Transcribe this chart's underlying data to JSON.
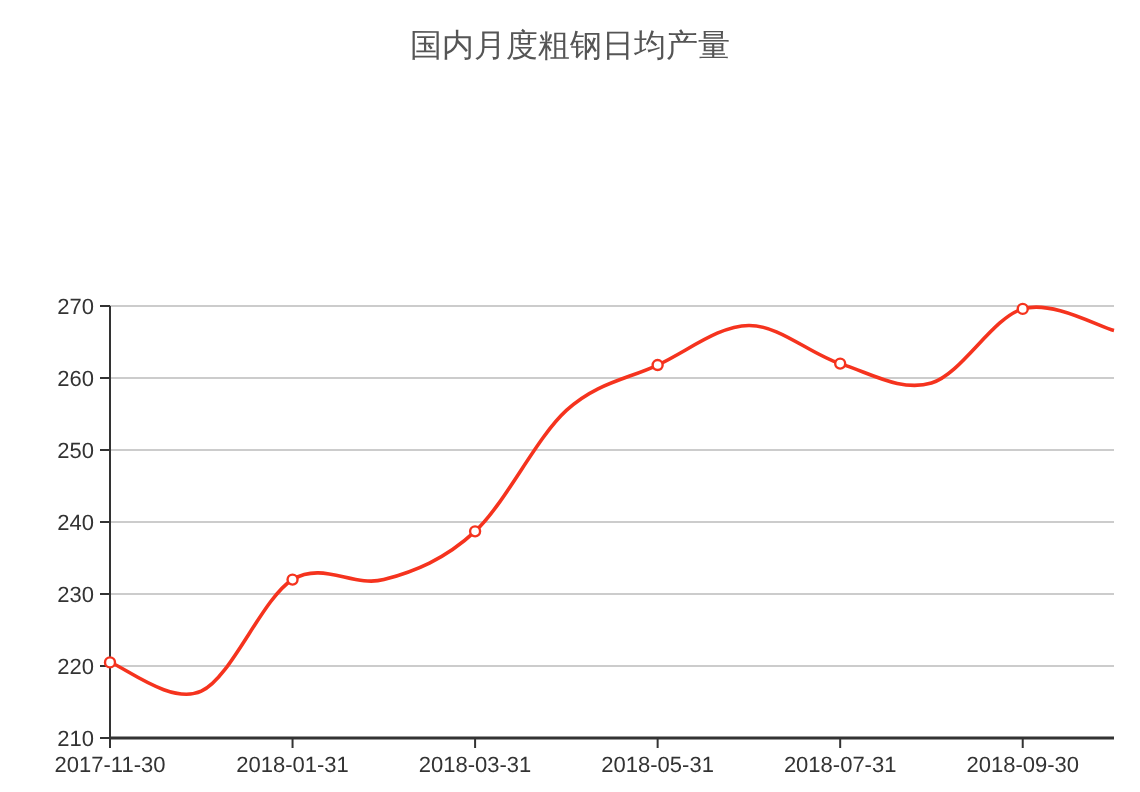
{
  "chart_data": {
    "type": "line",
    "title": "国内月度粗钢日均产量",
    "categories": [
      "2017-11-30",
      null,
      "2018-01-31",
      null,
      "2018-03-31",
      null,
      "2018-05-31",
      null,
      "2018-07-31",
      null,
      "2018-09-30",
      null
    ],
    "series": [
      {
        "color": "#f5331e",
        "values": [
          220.5,
          216.5,
          232,
          232,
          238.7,
          255.5,
          261.8,
          267.3,
          262,
          259.3,
          269.6,
          266.6
        ]
      }
    ],
    "ylim": [
      210,
      270
    ],
    "yticks": [
      210,
      220,
      230,
      240,
      250,
      260,
      270
    ],
    "grid": "y",
    "marker": "circle"
  }
}
